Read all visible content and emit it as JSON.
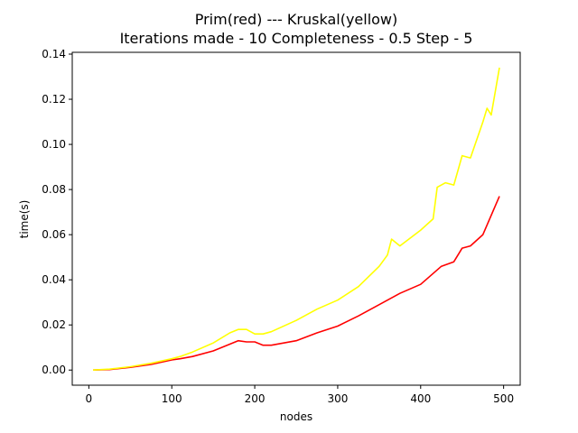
{
  "chart_data": {
    "type": "line",
    "title_line1": "Prim(red)  ---   Kruskal(yellow)",
    "title_line2": "Iterations made - 10    Completeness - 0.5    Step - 5",
    "xlabel": "nodes",
    "ylabel": "time(s)",
    "xlim": [
      -20,
      520
    ],
    "ylim": [
      -0.0067,
      0.1408
    ],
    "xticks": [
      0,
      100,
      200,
      300,
      400,
      500
    ],
    "yticks": [
      0.0,
      0.02,
      0.04,
      0.06,
      0.08,
      0.1,
      0.12,
      0.14
    ],
    "xtick_labels": [
      "0",
      "100",
      "200",
      "300",
      "400",
      "500"
    ],
    "ytick_labels": [
      "0.00",
      "0.02",
      "0.04",
      "0.06",
      "0.08",
      "0.10",
      "0.12",
      "0.14"
    ],
    "grid": false,
    "series": [
      {
        "color": "#ff0000",
        "x": [
          5,
          25,
          50,
          75,
          100,
          110,
          125,
          150,
          170,
          180,
          190,
          200,
          210,
          220,
          250,
          275,
          300,
          325,
          350,
          375,
          400,
          425,
          440,
          450,
          460,
          475,
          495
        ],
        "y": [
          0.0,
          0.0002,
          0.0012,
          0.0025,
          0.0045,
          0.005,
          0.006,
          0.0085,
          0.0115,
          0.013,
          0.0125,
          0.0125,
          0.011,
          0.011,
          0.013,
          0.0165,
          0.0195,
          0.024,
          0.029,
          0.034,
          0.038,
          0.046,
          0.048,
          0.054,
          0.055,
          0.06,
          0.077
        ]
      },
      {
        "color": "#ffff00",
        "x": [
          5,
          25,
          50,
          75,
          100,
          110,
          125,
          150,
          170,
          180,
          190,
          200,
          210,
          220,
          250,
          275,
          300,
          325,
          350,
          360,
          365,
          375,
          400,
          415,
          420,
          430,
          440,
          450,
          460,
          475,
          480,
          485,
          495
        ],
        "y": [
          0.0,
          0.0004,
          0.0015,
          0.003,
          0.005,
          0.006,
          0.008,
          0.012,
          0.0165,
          0.018,
          0.018,
          0.016,
          0.016,
          0.017,
          0.022,
          0.027,
          0.031,
          0.037,
          0.046,
          0.051,
          0.058,
          0.055,
          0.062,
          0.067,
          0.081,
          0.083,
          0.082,
          0.095,
          0.094,
          0.11,
          0.116,
          0.113,
          0.134
        ]
      }
    ]
  }
}
